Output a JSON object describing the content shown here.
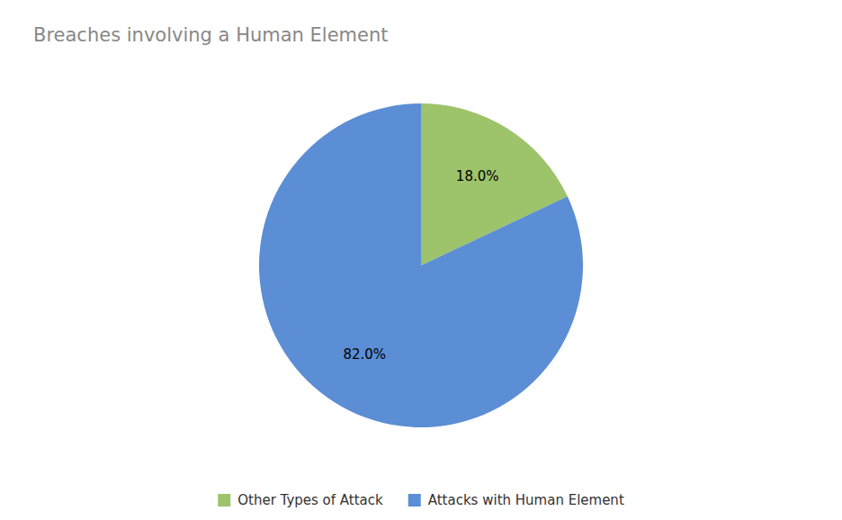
{
  "chart_data": {
    "type": "pie",
    "title": "Breaches involving a Human Element",
    "categories": [
      "Other Types of Attack",
      "Attacks with Human Element"
    ],
    "values": [
      18.0,
      82.0
    ],
    "value_labels": [
      "18.0%",
      "82.0%"
    ],
    "colors": [
      "#9dc36b",
      "#5b8ed4"
    ],
    "data_labels": true,
    "legend": "bottom"
  }
}
